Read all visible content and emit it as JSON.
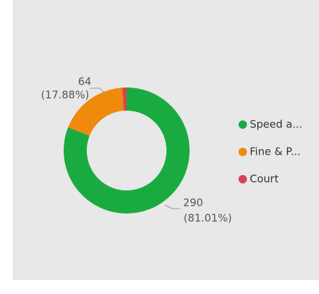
{
  "chart_data": {
    "type": "donut",
    "categories": [
      "Speed a...",
      "Fine & P...",
      "Court"
    ],
    "values": [
      290,
      64,
      4
    ],
    "percent_labels": [
      "(81.01%)",
      "(17.88%)",
      null
    ],
    "colors": [
      "#1aab40",
      "#ef8a0c",
      "#d64550"
    ],
    "legend": "right"
  }
}
